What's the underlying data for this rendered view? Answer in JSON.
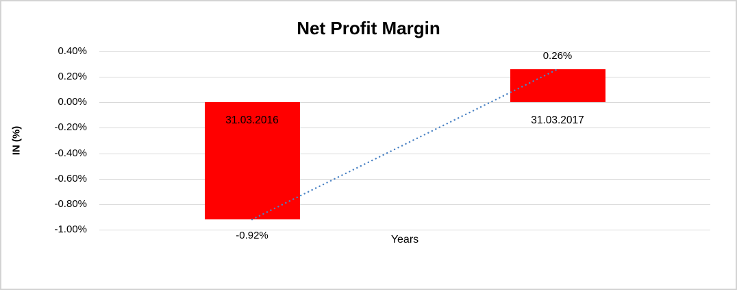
{
  "chart_data": {
    "type": "bar",
    "title": "Net Profit Margin",
    "xlabel": "Years",
    "ylabel": "IN (%)",
    "categories": [
      "31.03.2016",
      "31.03.2017"
    ],
    "values": [
      -0.92,
      0.26
    ],
    "data_labels": [
      "-0.92%",
      "0.26%"
    ],
    "ylim": [
      -1.0,
      0.4
    ],
    "ytick_values": [
      0.4,
      0.2,
      0.0,
      -0.2,
      -0.4,
      -0.6,
      -0.8,
      -1.0
    ],
    "ytick_labels": [
      "0.40%",
      "0.20%",
      "0.00%",
      "-0.20%",
      "-0.40%",
      "-0.60%",
      "-0.80%",
      "-1.00%"
    ],
    "grid": true,
    "legend": "none",
    "trendline": {
      "type": "linear",
      "style": "dotted",
      "from_value": -0.92,
      "to_value": 0.26
    },
    "colors": {
      "bar": "#ff0000",
      "trendline": "#4a82c4",
      "gridline": "#d9d9d9",
      "text": "#000000",
      "frame_border": "#d3d3d3",
      "background": "#ffffff"
    }
  }
}
